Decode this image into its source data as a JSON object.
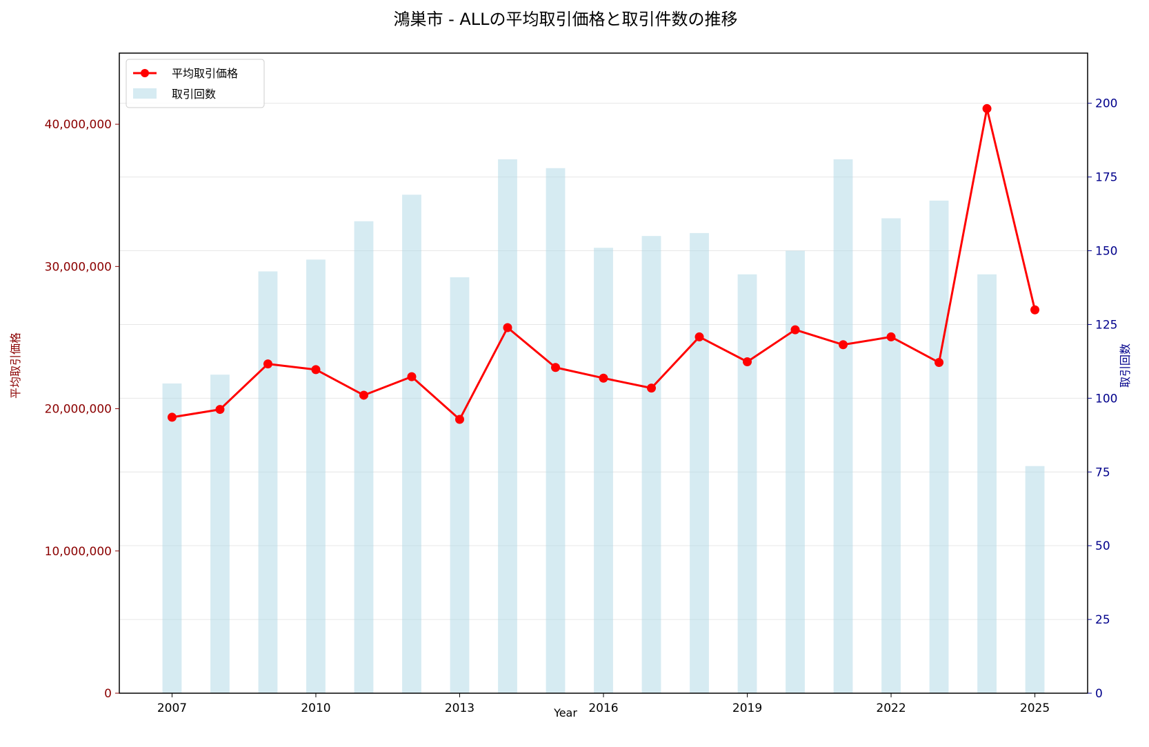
{
  "chart_data": {
    "type": "bar+line",
    "title": "鴻巣市 - ALLの平均取引価格と取引件数の推移",
    "xlabel": "Year",
    "ylabel_left": "平均取引価格",
    "ylabel_right": "取引回数",
    "x": [
      2007,
      2008,
      2009,
      2010,
      2011,
      2012,
      2013,
      2014,
      2015,
      2016,
      2017,
      2018,
      2019,
      2020,
      2021,
      2022,
      2023,
      2024,
      2025
    ],
    "x_ticks": [
      "2007",
      "2010",
      "2013",
      "2016",
      "2019",
      "2022",
      "2025"
    ],
    "xlim": [
      2005.9,
      2026.1
    ],
    "ylim_left": [
      0,
      45000000
    ],
    "yticks_left": [
      {
        "v": 0,
        "label": "0"
      },
      {
        "v": 10000000,
        "label": "10,000,000"
      },
      {
        "v": 20000000,
        "label": "20,000,000"
      },
      {
        "v": 30000000,
        "label": "30,000,000"
      },
      {
        "v": 40000000,
        "label": "40,000,000"
      }
    ],
    "ylim_right": [
      0,
      217
    ],
    "yticks_right": [
      {
        "v": 0,
        "label": "0"
      },
      {
        "v": 25,
        "label": "25"
      },
      {
        "v": 50,
        "label": "50"
      },
      {
        "v": 75,
        "label": "75"
      },
      {
        "v": 100,
        "label": "100"
      },
      {
        "v": 125,
        "label": "125"
      },
      {
        "v": 150,
        "label": "150"
      },
      {
        "v": 175,
        "label": "175"
      },
      {
        "v": 200,
        "label": "200"
      }
    ],
    "grid": true,
    "legend_position": "top-left",
    "series": [
      {
        "name": "平均取引価格",
        "type": "line",
        "axis": "left",
        "color": "#ff0000",
        "values": [
          19400000,
          19950000,
          23150000,
          22750000,
          20950000,
          22250000,
          19250000,
          25700000,
          22900000,
          22150000,
          21450000,
          25050000,
          23300000,
          25550000,
          24500000,
          25050000,
          23250000,
          41100000,
          26950000
        ]
      },
      {
        "name": "取引回数",
        "type": "bar",
        "axis": "right",
        "color": "#add8e6",
        "values": [
          105,
          108,
          143,
          147,
          160,
          169,
          141,
          181,
          178,
          151,
          155,
          156,
          142,
          150,
          181,
          161,
          167,
          142,
          77
        ]
      }
    ]
  },
  "colors": {
    "left_axis": "#8b0000",
    "right_axis": "#00008b",
    "line": "#ff0000",
    "bar": "#add8e6"
  }
}
